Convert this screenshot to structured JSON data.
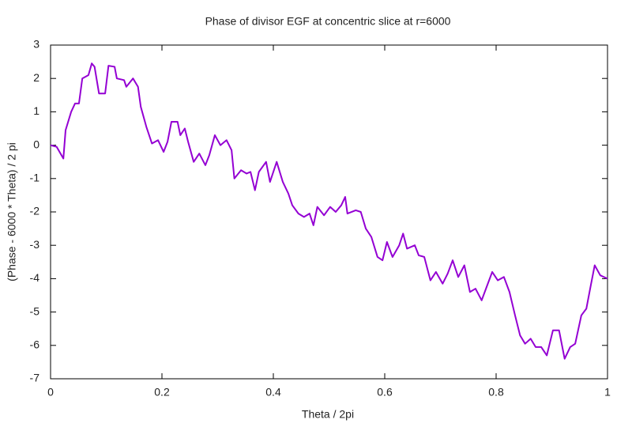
{
  "chart_data": {
    "type": "line",
    "title": "Phase of divisor EGF at concentric slice at r=6000",
    "xlabel": "Theta / 2pi",
    "ylabel": "(Phase - 6000 * Theta) / 2 pi",
    "color": "#9400d3",
    "xlim": [
      0,
      1
    ],
    "xticks": [
      0,
      0.2,
      0.4,
      0.6,
      0.8,
      1
    ],
    "ylim": [
      -7,
      3
    ],
    "yticks": [
      -7,
      -6,
      -5,
      -4,
      -3,
      -2,
      -1,
      0,
      1,
      2,
      3
    ],
    "x": [
      0,
      0.011,
      0.023,
      0.027,
      0.037,
      0.044,
      0.051,
      0.057,
      0.068,
      0.074,
      0.079,
      0.087,
      0.098,
      0.104,
      0.115,
      0.119,
      0.132,
      0.136,
      0.148,
      0.157,
      0.162,
      0.172,
      0.182,
      0.193,
      0.203,
      0.21,
      0.217,
      0.228,
      0.233,
      0.241,
      0.247,
      0.257,
      0.267,
      0.278,
      0.285,
      0.295,
      0.305,
      0.316,
      0.325,
      0.33,
      0.342,
      0.352,
      0.359,
      0.367,
      0.374,
      0.387,
      0.394,
      0.406,
      0.417,
      0.427,
      0.434,
      0.445,
      0.455,
      0.465,
      0.472,
      0.479,
      0.491,
      0.502,
      0.512,
      0.522,
      0.529,
      0.533,
      0.548,
      0.557,
      0.566,
      0.576,
      0.587,
      0.596,
      0.604,
      0.614,
      0.626,
      0.633,
      0.64,
      0.654,
      0.661,
      0.671,
      0.682,
      0.692,
      0.704,
      0.713,
      0.722,
      0.732,
      0.743,
      0.753,
      0.763,
      0.774,
      0.784,
      0.793,
      0.803,
      0.814,
      0.824,
      0.834,
      0.843,
      0.852,
      0.862,
      0.871,
      0.881,
      0.891,
      0.902,
      0.913,
      0.923,
      0.933,
      0.942,
      0.953,
      0.962,
      0.97,
      0.977,
      0.987,
      1
    ],
    "values": [
      0,
      -0.05,
      -0.4,
      0.45,
      1.0,
      1.25,
      1.25,
      2.0,
      2.1,
      2.45,
      2.35,
      1.55,
      1.55,
      2.38,
      2.35,
      2.0,
      1.95,
      1.75,
      2.0,
      1.75,
      1.15,
      0.55,
      0.05,
      0.15,
      -0.2,
      0.1,
      0.7,
      0.7,
      0.3,
      0.5,
      0.1,
      -0.5,
      -0.25,
      -0.6,
      -0.3,
      0.3,
      0,
      0.15,
      -0.15,
      -1.0,
      -0.75,
      -0.85,
      -0.8,
      -1.35,
      -0.8,
      -0.5,
      -1.1,
      -0.5,
      -1.1,
      -1.45,
      -1.8,
      -2.05,
      -2.15,
      -2.05,
      -2.4,
      -1.85,
      -2.1,
      -1.85,
      -2.0,
      -1.8,
      -1.55,
      -2.05,
      -1.95,
      -2.0,
      -2.5,
      -2.75,
      -3.35,
      -3.45,
      -2.9,
      -3.35,
      -3.0,
      -2.65,
      -3.1,
      -3.0,
      -3.3,
      -3.35,
      -4.05,
      -3.8,
      -4.15,
      -3.85,
      -3.45,
      -3.95,
      -3.6,
      -4.4,
      -4.3,
      -4.65,
      -4.2,
      -3.8,
      -4.05,
      -3.95,
      -4.4,
      -5.1,
      -5.7,
      -5.95,
      -5.8,
      -6.05,
      -6.05,
      -6.3,
      -5.55,
      -5.55,
      -6.4,
      -6.05,
      -5.95,
      -5.1,
      -4.9,
      -4.2,
      -3.6,
      -3.9,
      -4.0
    ]
  }
}
